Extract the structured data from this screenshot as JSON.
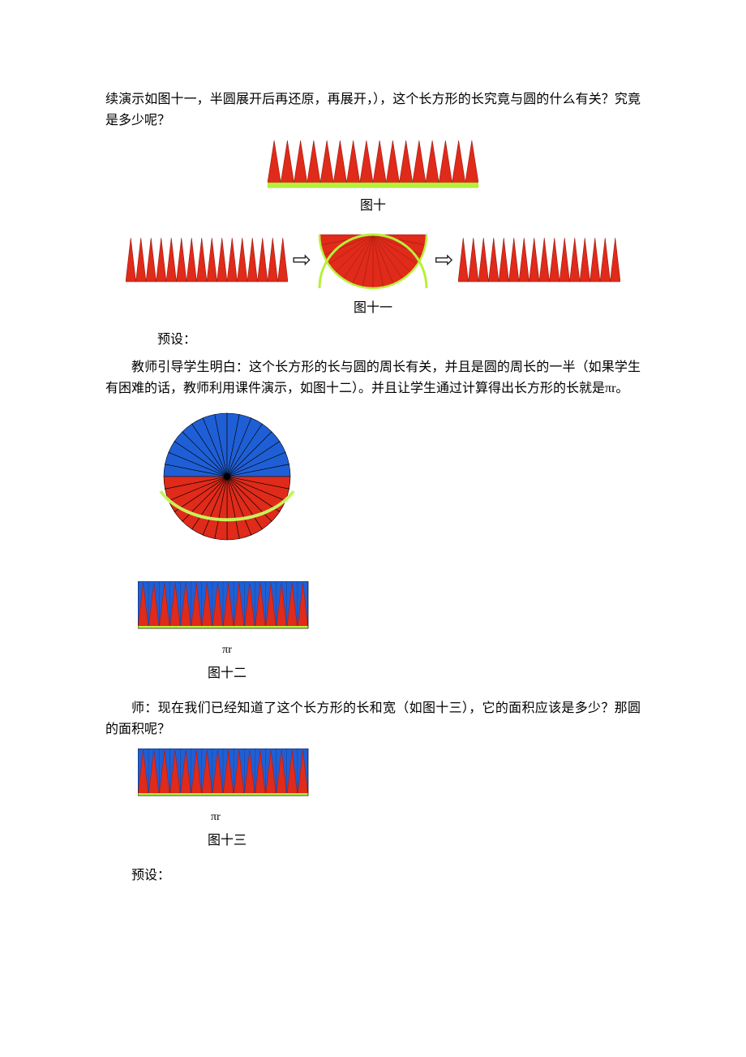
{
  "text": {
    "p1": "续演示如图十一，半圆展开后再还原，再展开，），这个长方形的长究竟与圆的什么有关？究竟是多少呢？",
    "cap10": "图十",
    "cap11": "图十一",
    "preset1": "预设：",
    "p2": "教师引导学生明白：这个长方形的长与圆的周长有关，并且是圆的周长的一半（如果学生有困难的话，教师利用课件演示，如图十二）。并且让学生通过计算得出长方形的长就是πr。",
    "pi_r": "πr",
    "cap12": "图十二",
    "p3": "师：现在我们已经知道了这个长方形的长和宽（如图十三），它的面积应该是多少？那圆的面积呢？",
    "cap13": "图十三",
    "preset2": "预设："
  },
  "colors": {
    "red": "#e02a1a",
    "red_dark": "#9a1a0f",
    "blue": "#1f5fd6",
    "blue_dark": "#123a85",
    "green": "#b7f03a",
    "green_dark": "#8ccf20",
    "arc_green": "#c6f25a",
    "black": "#000000",
    "bg": "#ffffff"
  },
  "figures": {
    "spikes_per_half": 16,
    "rect_width": 260,
    "rect_height": 56,
    "small_rect_width": 200,
    "small_rect_height": 56,
    "circle_r": 80,
    "combo_width": 210,
    "combo_height": 58
  }
}
